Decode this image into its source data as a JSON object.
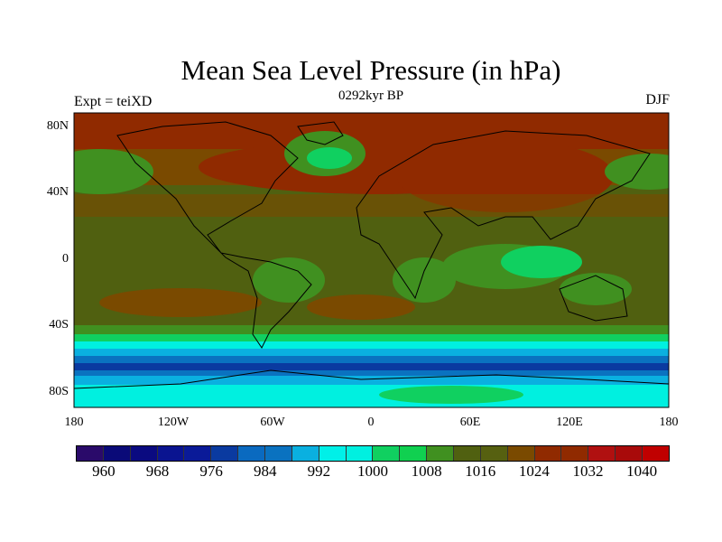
{
  "title": "Mean Sea Level Pressure (in hPa)",
  "subtitle": "0292kyr BP",
  "left_string": "Expt = teiXD",
  "right_string": "DJF",
  "chart_data": {
    "type": "heatmap",
    "title": "Mean Sea Level Pressure (in hPa)",
    "projection": "cylindrical equidistant",
    "lat_ticks": [
      "80N",
      "40N",
      "0",
      "40S",
      "80S"
    ],
    "lon_ticks": [
      "180",
      "120W",
      "60W",
      "0",
      "60E",
      "120E",
      "180"
    ],
    "lon_range": [
      -180,
      180
    ],
    "lat_range": [
      -90,
      90
    ],
    "contour_levels": [
      960,
      964,
      968,
      972,
      976,
      980,
      984,
      988,
      992,
      996,
      1000,
      1004,
      1008,
      1012,
      1016,
      1020,
      1024,
      1028,
      1032,
      1036,
      1040
    ],
    "colorbar_labels": [
      "960",
      "968",
      "976",
      "984",
      "992",
      "1000",
      "1008",
      "1016",
      "1024",
      "1032",
      "1040"
    ],
    "colors": [
      "#2a0a6a",
      "#0a0a78",
      "#0a0a80",
      "#0a1490",
      "#0a1a98",
      "#0a3aa0",
      "#0a6ac0",
      "#0a72c0",
      "#0ab0e0",
      "#00f0e8",
      "#00f0e0",
      "#10d060",
      "#10d050",
      "#409020",
      "#506010",
      "#566010",
      "#7a4a00",
      "#902a00",
      "#902a00",
      "#b01010",
      "#a80a0a",
      "#c00000"
    ]
  }
}
